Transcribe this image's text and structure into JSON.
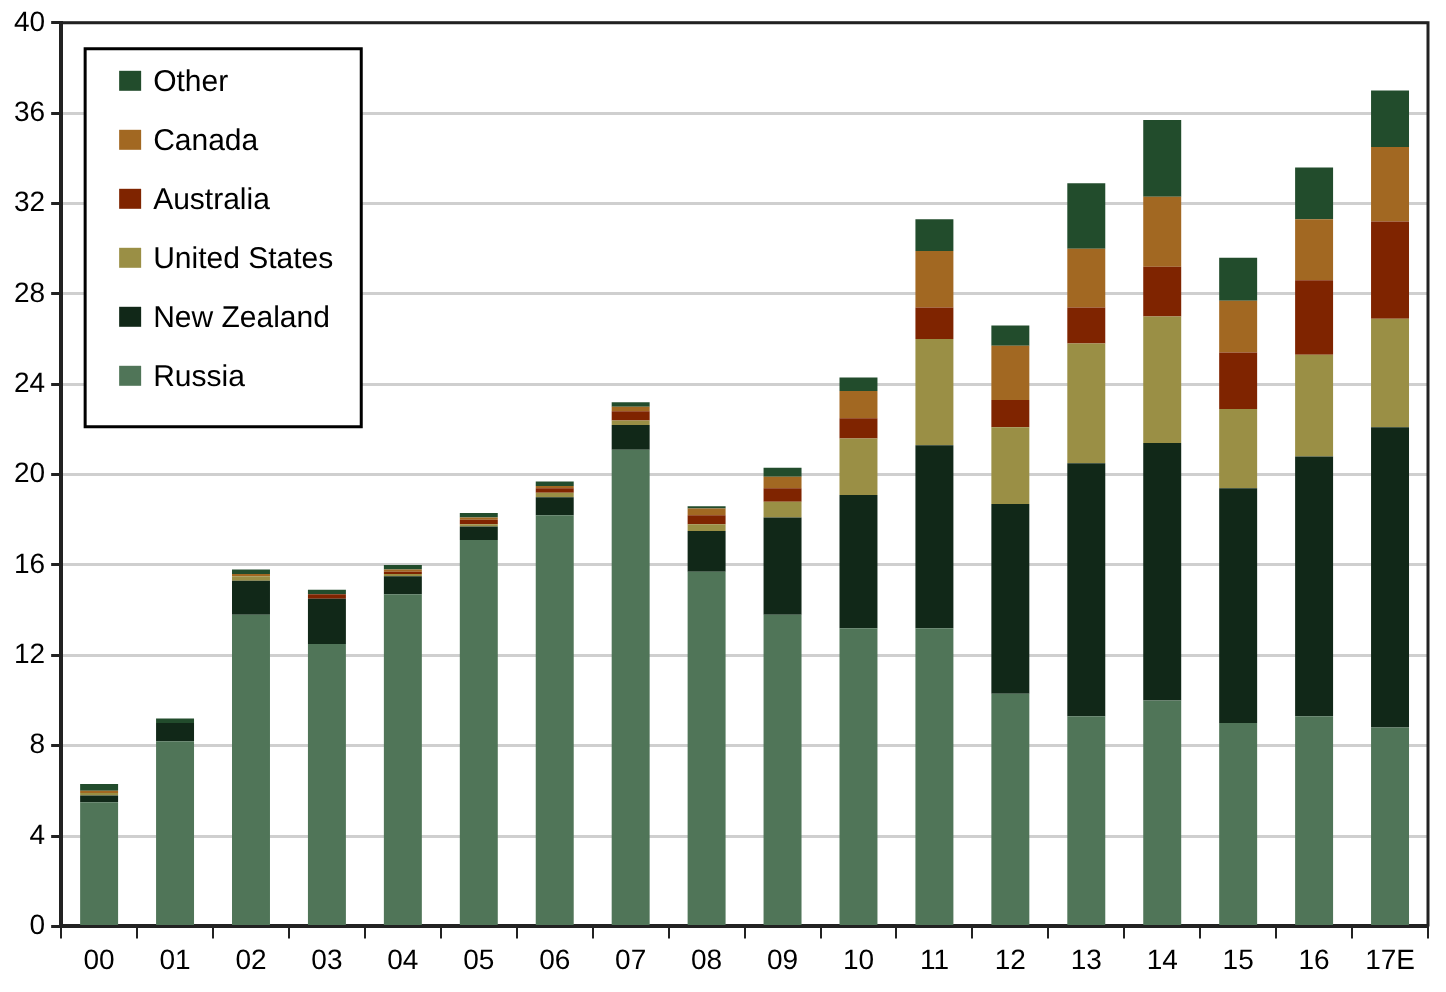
{
  "chart_data": {
    "type": "bar",
    "stacked": true,
    "categories": [
      "00",
      "01",
      "02",
      "03",
      "04",
      "05",
      "06",
      "07",
      "08",
      "09",
      "10",
      "11",
      "12",
      "13",
      "14",
      "15",
      "16",
      "17E"
    ],
    "series": [
      {
        "name": "Russia",
        "color": "#507558",
        "values": [
          5.5,
          8.2,
          13.8,
          12.5,
          14.7,
          17.1,
          18.2,
          21.1,
          15.7,
          13.8,
          13.2,
          13.2,
          10.3,
          9.3,
          10.0,
          9.0,
          9.3,
          8.8
        ]
      },
      {
        "name": "New Zealand",
        "color": "#112818",
        "values": [
          0.3,
          0.8,
          1.5,
          2.0,
          0.8,
          0.6,
          0.8,
          1.1,
          1.8,
          4.3,
          5.9,
          8.1,
          8.4,
          11.2,
          11.4,
          10.4,
          11.5,
          13.3
        ]
      },
      {
        "name": "United States",
        "color": "#9a8f45",
        "values": [
          0.1,
          0,
          0.2,
          0,
          0.1,
          0.1,
          0.2,
          0.2,
          0.3,
          0.7,
          2.5,
          4.7,
          3.4,
          5.3,
          5.6,
          3.5,
          4.5,
          4.8
        ]
      },
      {
        "name": "Australia",
        "color": "#7f2400",
        "values": [
          0,
          0,
          0,
          0.2,
          0.1,
          0.2,
          0.2,
          0.4,
          0.4,
          0.6,
          0.9,
          1.4,
          1.2,
          1.6,
          2.2,
          2.5,
          3.3,
          4.3
        ]
      },
      {
        "name": "Canada",
        "color": "#a26822",
        "values": [
          0.1,
          0,
          0.1,
          0,
          0.1,
          0.1,
          0.1,
          0.2,
          0.3,
          0.5,
          1.2,
          2.5,
          2.4,
          2.6,
          3.1,
          2.3,
          2.7,
          3.3
        ]
      },
      {
        "name": "Other",
        "color": "#224c2c",
        "values": [
          0.3,
          0.2,
          0.2,
          0.2,
          0.2,
          0.2,
          0.2,
          0.2,
          0.1,
          0.4,
          0.6,
          1.4,
          0.9,
          2.9,
          3.4,
          1.9,
          2.3,
          2.5
        ]
      }
    ],
    "ylim": [
      0,
      40
    ],
    "yticks": [
      0,
      4,
      8,
      12,
      16,
      20,
      24,
      28,
      32,
      36,
      40
    ],
    "grid": "y",
    "legend": "top left"
  }
}
